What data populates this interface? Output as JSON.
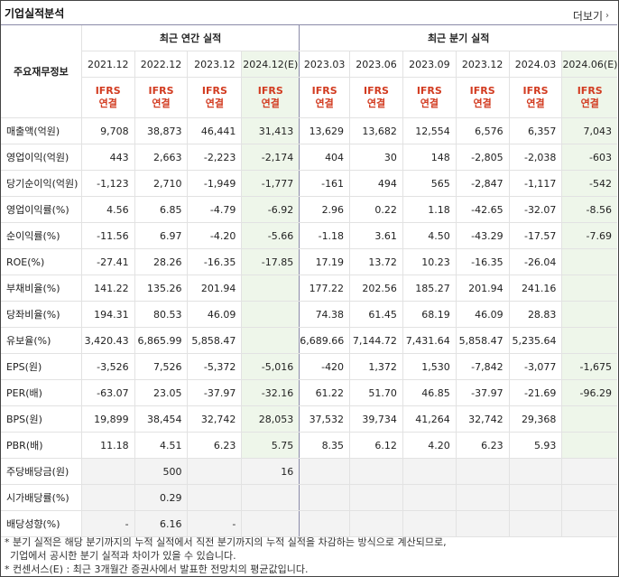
{
  "header": {
    "title": "기업실적분석",
    "more_label": "더보기",
    "more_icon": "chevron-right-icon"
  },
  "table": {
    "corner_label": "주요재무정보",
    "groups": {
      "annual": "최근 연간 실적",
      "quarter": "최근 분기 실적"
    },
    "periods": [
      "2021.12",
      "2022.12",
      "2023.12",
      "2024.12(E)",
      "2023.03",
      "2023.06",
      "2023.09",
      "2023.12",
      "2024.03",
      "2024.06(E)"
    ],
    "ifrs": [
      "IFRS",
      "IFRS",
      "IFRS",
      "IFRS",
      "IFRS",
      "IFRS",
      "IFRS",
      "IFRS",
      "IFRS",
      "IFRS"
    ],
    "basis": [
      "연결",
      "연결",
      "연결",
      "연결",
      "연결",
      "연결",
      "연결",
      "연결",
      "연결",
      "연결"
    ],
    "rows": [
      {
        "label": "매출액(억원)",
        "values": [
          "9,708",
          "38,873",
          "46,441",
          "31,413",
          "13,629",
          "13,682",
          "12,554",
          "6,576",
          "6,357",
          "7,043"
        ]
      },
      {
        "label": "영업이익(억원)",
        "values": [
          "443",
          "2,663",
          "-2,223",
          "-2,174",
          "404",
          "30",
          "148",
          "-2,805",
          "-2,038",
          "-603"
        ]
      },
      {
        "label": "당기순이익(억원)",
        "values": [
          "-1,123",
          "2,710",
          "-1,949",
          "-1,777",
          "-161",
          "494",
          "565",
          "-2,847",
          "-1,117",
          "-542"
        ]
      },
      {
        "label": "영업이익률(%)",
        "values": [
          "4.56",
          "6.85",
          "-4.79",
          "-6.92",
          "2.96",
          "0.22",
          "1.18",
          "-42.65",
          "-32.07",
          "-8.56"
        ]
      },
      {
        "label": "순이익률(%)",
        "values": [
          "-11.56",
          "6.97",
          "-4.20",
          "-5.66",
          "-1.18",
          "3.61",
          "4.50",
          "-43.29",
          "-17.57",
          "-7.69"
        ]
      },
      {
        "label": "ROE(%)",
        "values": [
          "-27.41",
          "28.26",
          "-16.35",
          "-17.85",
          "17.19",
          "13.72",
          "10.23",
          "-16.35",
          "-26.04",
          ""
        ]
      },
      {
        "label": "부채비율(%)",
        "values": [
          "141.22",
          "135.26",
          "201.94",
          "",
          "177.22",
          "202.56",
          "185.27",
          "201.94",
          "241.16",
          ""
        ]
      },
      {
        "label": "당좌비율(%)",
        "values": [
          "194.31",
          "80.53",
          "46.09",
          "",
          "74.38",
          "61.45",
          "68.19",
          "46.09",
          "28.83",
          ""
        ]
      },
      {
        "label": "유보율(%)",
        "values": [
          "3,420.43",
          "6,865.99",
          "5,858.47",
          "",
          "6,689.66",
          "7,144.72",
          "7,431.64",
          "5,858.47",
          "5,235.64",
          ""
        ]
      },
      {
        "label": "EPS(원)",
        "values": [
          "-3,526",
          "7,526",
          "-5,372",
          "-5,016",
          "-420",
          "1,372",
          "1,530",
          "-7,842",
          "-3,077",
          "-1,675"
        ]
      },
      {
        "label": "PER(배)",
        "values": [
          "-63.07",
          "23.05",
          "-37.97",
          "-32.16",
          "61.22",
          "51.70",
          "46.85",
          "-37.97",
          "-21.69",
          "-96.29"
        ]
      },
      {
        "label": "BPS(원)",
        "values": [
          "19,899",
          "38,454",
          "32,742",
          "28,053",
          "37,532",
          "39,734",
          "41,264",
          "32,742",
          "29,368",
          ""
        ]
      },
      {
        "label": "PBR(배)",
        "values": [
          "11.18",
          "4.51",
          "6.23",
          "5.75",
          "8.35",
          "6.12",
          "4.20",
          "6.23",
          "5.93",
          ""
        ]
      },
      {
        "label": "주당배당금(원)",
        "values": [
          "",
          "500",
          "",
          "16",
          "",
          "",
          "",
          "",
          "",
          ""
        ]
      },
      {
        "label": "시가배당률(%)",
        "values": [
          "",
          "0.29",
          "",
          "",
          "",
          "",
          "",
          "",
          "",
          ""
        ]
      },
      {
        "label": "배당성향(%)",
        "values": [
          "-",
          "6.16",
          "-",
          "",
          "",
          "",
          "",
          "",
          "",
          ""
        ]
      }
    ]
  },
  "notes": [
    "* 분기 실적은 해당 분기까지의 누적 실적에서 직전 분기까지의 누적 실적을 차감하는 방식으로 계산되므로,",
    "  기업에서 공시한 분기 실적과 차이가 있을 수 있습니다.",
    "* 컨센서스(E) : 최근 3개월간 증권사에서 발표한 전망치의 평균값입니다."
  ],
  "colors": {
    "negative": "#c0152d",
    "ifrs": "#d23b20",
    "estimate_bg": "#eef6ea"
  }
}
